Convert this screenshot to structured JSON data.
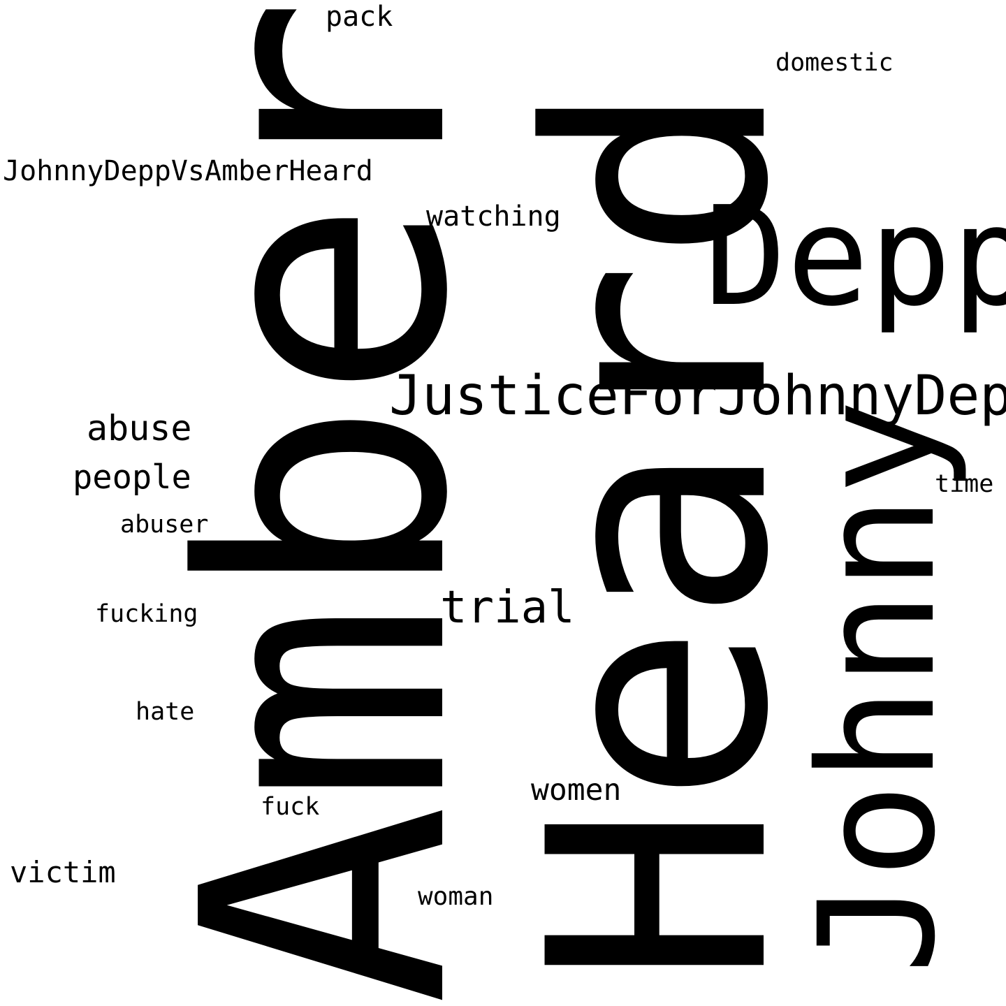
{
  "word_cloud": {
    "words": [
      {
        "text": "Amber",
        "color": "#c5b0d5",
        "orientation": "vertical"
      },
      {
        "text": "Heard",
        "color": "#9edae5",
        "orientation": "vertical"
      },
      {
        "text": "Depp",
        "color": "#e377c2",
        "orientation": "horizontal"
      },
      {
        "text": "Johnny",
        "color": "#c49c94",
        "orientation": "vertical"
      },
      {
        "text": "JusticeForJohnnyDepp",
        "color": "#ff7f0e",
        "orientation": "horizontal"
      },
      {
        "text": "trial",
        "color": "#ffbb78",
        "orientation": "horizontal"
      },
      {
        "text": "abuse",
        "color": "#17becf",
        "orientation": "horizontal"
      },
      {
        "text": "people",
        "color": "#f7b6d2",
        "orientation": "horizontal"
      },
      {
        "text": "women",
        "color": "#1f77b4",
        "orientation": "horizontal"
      },
      {
        "text": "victim",
        "color": "#17becf",
        "orientation": "horizontal"
      },
      {
        "text": "JohnnyDeppVsAmberHeard",
        "color": "#9edae5",
        "orientation": "horizontal"
      },
      {
        "text": "watching",
        "color": "#ffbb78",
        "orientation": "horizontal"
      },
      {
        "text": "pack",
        "color": "#2ca02c",
        "orientation": "horizontal"
      },
      {
        "text": "woman",
        "color": "#d62728",
        "orientation": "horizontal"
      },
      {
        "text": "domestic",
        "color": "#2ca02c",
        "orientation": "horizontal"
      },
      {
        "text": "abuser",
        "color": "#ffbb78",
        "orientation": "horizontal"
      },
      {
        "text": "fuck",
        "color": "#d62728",
        "orientation": "horizontal"
      },
      {
        "text": "time",
        "color": "#2ca02c",
        "orientation": "horizontal"
      },
      {
        "text": "fucking",
        "color": "#c5b0d5",
        "orientation": "horizontal"
      },
      {
        "text": "hate",
        "color": "#c5b0d5",
        "orientation": "horizontal"
      }
    ]
  }
}
